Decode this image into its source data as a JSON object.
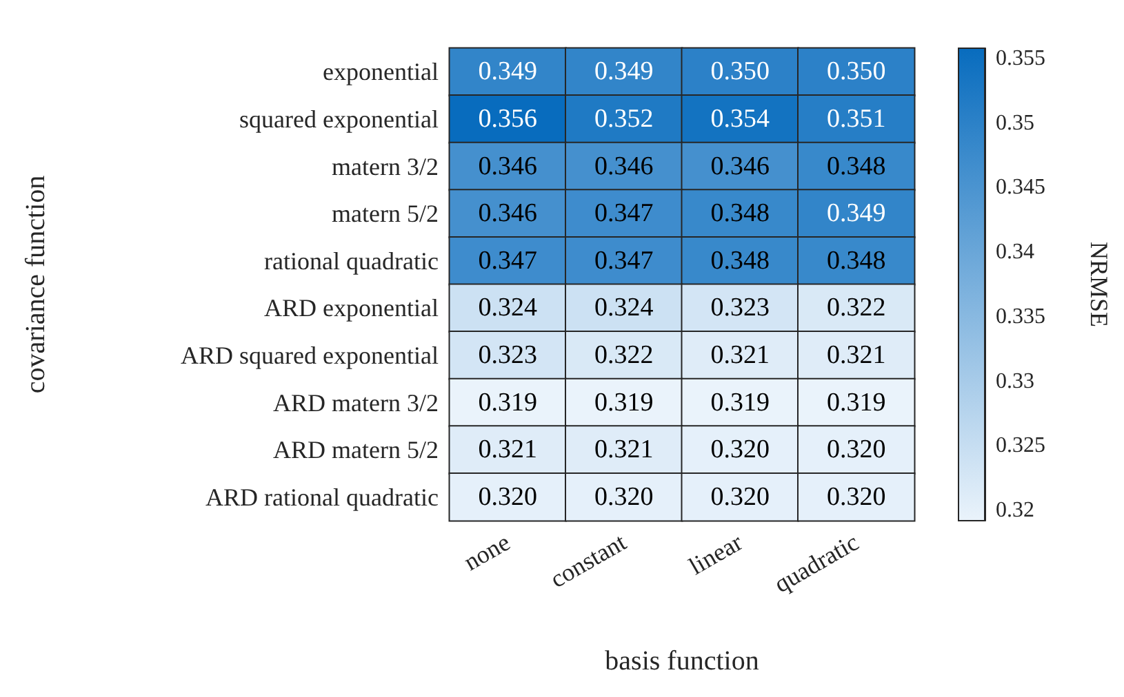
{
  "chart_data": {
    "type": "heatmap",
    "xlabel": "basis function",
    "ylabel": "covariance function",
    "clabel": "NRMSE",
    "categories": [
      "none",
      "constant",
      "linear",
      "quadratic"
    ],
    "y_categories": [
      "exponential",
      "squared exponential",
      "matern 3/2",
      "matern 5/2",
      "rational quadratic",
      "ARD exponential",
      "ARD squared exponential",
      "ARD matern 3/2",
      "ARD matern 5/2",
      "ARD rational quadratic"
    ],
    "cells": [
      [
        0.349,
        0.349,
        0.35,
        0.35
      ],
      [
        0.356,
        0.352,
        0.354,
        0.351
      ],
      [
        0.346,
        0.346,
        0.346,
        0.348
      ],
      [
        0.346,
        0.347,
        0.348,
        0.349
      ],
      [
        0.347,
        0.347,
        0.348,
        0.348
      ],
      [
        0.324,
        0.324,
        0.323,
        0.322
      ],
      [
        0.323,
        0.322,
        0.321,
        0.321
      ],
      [
        0.319,
        0.319,
        0.319,
        0.319
      ],
      [
        0.321,
        0.321,
        0.32,
        0.32
      ],
      [
        0.32,
        0.32,
        0.32,
        0.32
      ]
    ],
    "cell_labels": [
      [
        "0.349",
        "0.349",
        "0.350",
        "0.350"
      ],
      [
        "0.356",
        "0.352",
        "0.354",
        "0.351"
      ],
      [
        "0.346",
        "0.346",
        "0.346",
        "0.348"
      ],
      [
        "0.346",
        "0.347",
        "0.348",
        "0.349"
      ],
      [
        "0.347",
        "0.347",
        "0.348",
        "0.348"
      ],
      [
        "0.324",
        "0.324",
        "0.323",
        "0.322"
      ],
      [
        "0.323",
        "0.322",
        "0.321",
        "0.321"
      ],
      [
        "0.319",
        "0.319",
        "0.319",
        "0.319"
      ],
      [
        "0.321",
        "0.321",
        "0.320",
        "0.320"
      ],
      [
        "0.320",
        "0.320",
        "0.320",
        "0.320"
      ]
    ],
    "clim": [
      0.3192,
      0.3558
    ],
    "cticks": [
      0.32,
      0.325,
      0.33,
      0.335,
      0.34,
      0.345,
      0.35,
      0.355
    ]
  }
}
